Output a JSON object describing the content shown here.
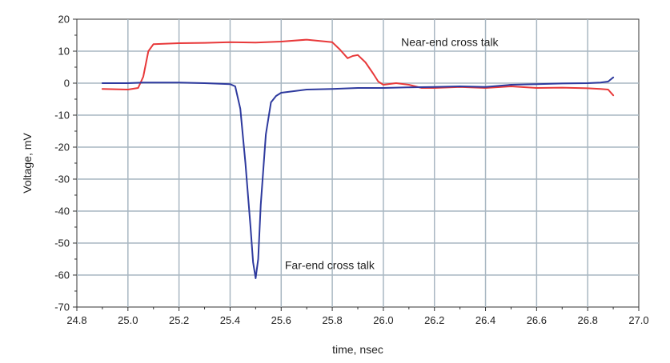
{
  "chart_data": {
    "type": "line",
    "title": "",
    "xlabel": "time, nsec",
    "ylabel": "Voltage, mV",
    "xlim": [
      24.8,
      27.0
    ],
    "ylim": [
      -70,
      20
    ],
    "x_ticks": [
      "24.8",
      "25.0",
      "25.2",
      "25.4",
      "25.6",
      "25.8",
      "26.0",
      "26.2",
      "26.4",
      "26.6",
      "26.8",
      "27.0"
    ],
    "y_ticks": [
      "20",
      "10",
      "0",
      "-10",
      "-20",
      "-30",
      "-40",
      "-50",
      "-60",
      "-70"
    ],
    "grid": true,
    "series": [
      {
        "color": "#e8393a",
        "points": [
          [
            24.9,
            -1.8
          ],
          [
            25.0,
            -2.0
          ],
          [
            25.04,
            -1.5
          ],
          [
            25.06,
            2.0
          ],
          [
            25.08,
            10.0
          ],
          [
            25.1,
            12.2
          ],
          [
            25.2,
            12.5
          ],
          [
            25.3,
            12.6
          ],
          [
            25.4,
            12.8
          ],
          [
            25.5,
            12.7
          ],
          [
            25.6,
            13.0
          ],
          [
            25.7,
            13.6
          ],
          [
            25.8,
            12.8
          ],
          [
            25.83,
            10.5
          ],
          [
            25.86,
            7.8
          ],
          [
            25.88,
            8.5
          ],
          [
            25.9,
            8.8
          ],
          [
            25.93,
            6.5
          ],
          [
            25.96,
            3.0
          ],
          [
            25.98,
            0.5
          ],
          [
            26.0,
            -0.5
          ],
          [
            26.05,
            0.0
          ],
          [
            26.1,
            -0.5
          ],
          [
            26.15,
            -1.5
          ],
          [
            26.2,
            -1.5
          ],
          [
            26.3,
            -1.2
          ],
          [
            26.4,
            -1.5
          ],
          [
            26.5,
            -1.0
          ],
          [
            26.6,
            -1.5
          ],
          [
            26.7,
            -1.4
          ],
          [
            26.8,
            -1.6
          ],
          [
            26.85,
            -1.8
          ],
          [
            26.88,
            -2.0
          ],
          [
            26.9,
            -3.8
          ]
        ]
      },
      {
        "color": "#2e3a9e",
        "points": [
          [
            24.9,
            0.0
          ],
          [
            25.0,
            0.0
          ],
          [
            25.06,
            0.2
          ],
          [
            25.1,
            0.2
          ],
          [
            25.2,
            0.2
          ],
          [
            25.3,
            0.0
          ],
          [
            25.4,
            -0.3
          ],
          [
            25.42,
            -1.0
          ],
          [
            25.44,
            -8.0
          ],
          [
            25.46,
            -25.0
          ],
          [
            25.48,
            -45.0
          ],
          [
            25.49,
            -56.0
          ],
          [
            25.5,
            -61.0
          ],
          [
            25.51,
            -55.0
          ],
          [
            25.52,
            -38.0
          ],
          [
            25.54,
            -16.0
          ],
          [
            25.56,
            -6.0
          ],
          [
            25.58,
            -4.0
          ],
          [
            25.6,
            -3.0
          ],
          [
            25.65,
            -2.5
          ],
          [
            25.7,
            -2.0
          ],
          [
            25.8,
            -1.8
          ],
          [
            25.9,
            -1.5
          ],
          [
            26.0,
            -1.5
          ],
          [
            26.1,
            -1.3
          ],
          [
            26.2,
            -1.2
          ],
          [
            26.3,
            -1.0
          ],
          [
            26.4,
            -1.2
          ],
          [
            26.5,
            -0.5
          ],
          [
            26.6,
            -0.3
          ],
          [
            26.7,
            -0.1
          ],
          [
            26.8,
            0.0
          ],
          [
            26.85,
            0.2
          ],
          [
            26.88,
            0.5
          ],
          [
            26.9,
            1.8
          ]
        ]
      }
    ],
    "annotations": [
      {
        "text": "Near-end cross talk",
        "x": 26.26,
        "y": 11.6
      },
      {
        "text": "Far-end cross talk",
        "x": 25.79,
        "y": -58.1
      }
    ]
  }
}
